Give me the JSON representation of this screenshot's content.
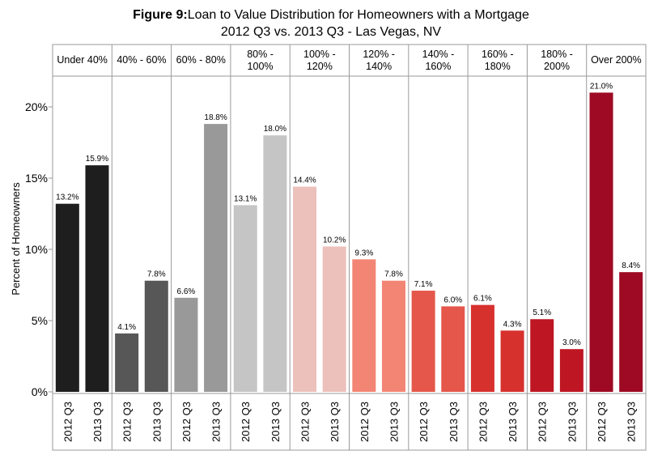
{
  "chart_data": {
    "type": "bar",
    "title_prefix": "Figure 9:",
    "title": "Loan to Value Distribution for Homeowners with a Mortgage",
    "subtitle": "2012 Q3 vs. 2013 Q3 - Las Vegas, NV",
    "ylabel": "Percent of Homeowners",
    "ylim": [
      0,
      24
    ],
    "yticks": [
      0,
      5,
      10,
      15,
      20
    ],
    "ytick_labels": [
      "0%",
      "5%",
      "10%",
      "15%",
      "20%"
    ],
    "series_labels": [
      "2012 Q3",
      "2013 Q3"
    ],
    "grid": false,
    "groups": [
      {
        "label": [
          "Under 40%"
        ],
        "values": [
          13.2,
          15.9
        ],
        "value_labels": [
          "13.2%",
          "15.9%"
        ],
        "color": "#1e1e1e"
      },
      {
        "label": [
          "40% - 60%"
        ],
        "values": [
          4.1,
          7.8
        ],
        "value_labels": [
          "4.1%",
          "7.8%"
        ],
        "color": "#575757"
      },
      {
        "label": [
          "60% - 80%"
        ],
        "values": [
          6.6,
          18.8
        ],
        "value_labels": [
          "6.6%",
          "18.8%"
        ],
        "color": "#999999"
      },
      {
        "label": [
          "80% -",
          "100%"
        ],
        "values": [
          13.1,
          18.0
        ],
        "value_labels": [
          "13.1%",
          "18.0%"
        ],
        "color": "#c5c5c5"
      },
      {
        "label": [
          "100% -",
          "120%"
        ],
        "values": [
          14.4,
          10.2
        ],
        "value_labels": [
          "14.4%",
          "10.2%"
        ],
        "color": "#ecc0bb"
      },
      {
        "label": [
          "120% -",
          "140%"
        ],
        "values": [
          9.3,
          7.8
        ],
        "value_labels": [
          "9.3%",
          "7.8%"
        ],
        "color": "#f38574"
      },
      {
        "label": [
          "140% -",
          "160%"
        ],
        "values": [
          7.1,
          6.0
        ],
        "value_labels": [
          "7.1%",
          "6.0%"
        ],
        "color": "#e4574a"
      },
      {
        "label": [
          "160% -",
          "180%"
        ],
        "values": [
          6.1,
          4.3
        ],
        "value_labels": [
          "6.1%",
          "4.3%"
        ],
        "color": "#d7312e"
      },
      {
        "label": [
          "180% -",
          "200%"
        ],
        "values": [
          5.1,
          3.0
        ],
        "value_labels": [
          "5.1%",
          "3.0%"
        ],
        "color": "#be1622"
      },
      {
        "label": [
          "Over 200%"
        ],
        "values": [
          21.0,
          8.4
        ],
        "value_labels": [
          "21.0%",
          "8.4%"
        ],
        "color": "#9e0a24"
      }
    ]
  }
}
